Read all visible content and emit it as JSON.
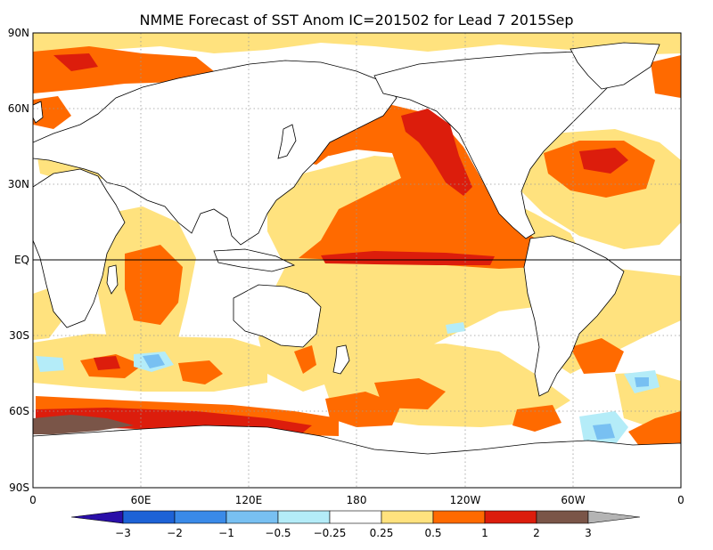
{
  "title": "NMME Forecast of SST Anom  IC=201502 for Lead 7 2015Sep",
  "lat_labels": [
    "90N",
    "60N",
    "30N",
    "EQ",
    "30S",
    "60S",
    "90S"
  ],
  "lon_labels": [
    "0",
    "60E",
    "120E",
    "180",
    "120W",
    "60W",
    "0"
  ],
  "colorbar": {
    "labels": [
      "−3",
      "−2",
      "−1",
      "−0.5",
      "−0.25",
      "0.25",
      "0.5",
      "1",
      "2",
      "3"
    ],
    "colors": [
      "#2a0fa8",
      "#1d62d6",
      "#3a8ae8",
      "#78c0f2",
      "#b4ecf8",
      "#ffffff",
      "#ffe27e",
      "#ff6a00",
      "#dc1d0c",
      "#7a5548",
      "#b4b4b4"
    ]
  },
  "anomaly_colors": {
    "weak_warm": "#ffe27e",
    "warm": "#ff6a00",
    "strong_warm": "#dc1d0c",
    "very_strong_warm": "#7a5548",
    "weak_cold": "#b4ecf8",
    "cold": "#78c0f2"
  }
}
